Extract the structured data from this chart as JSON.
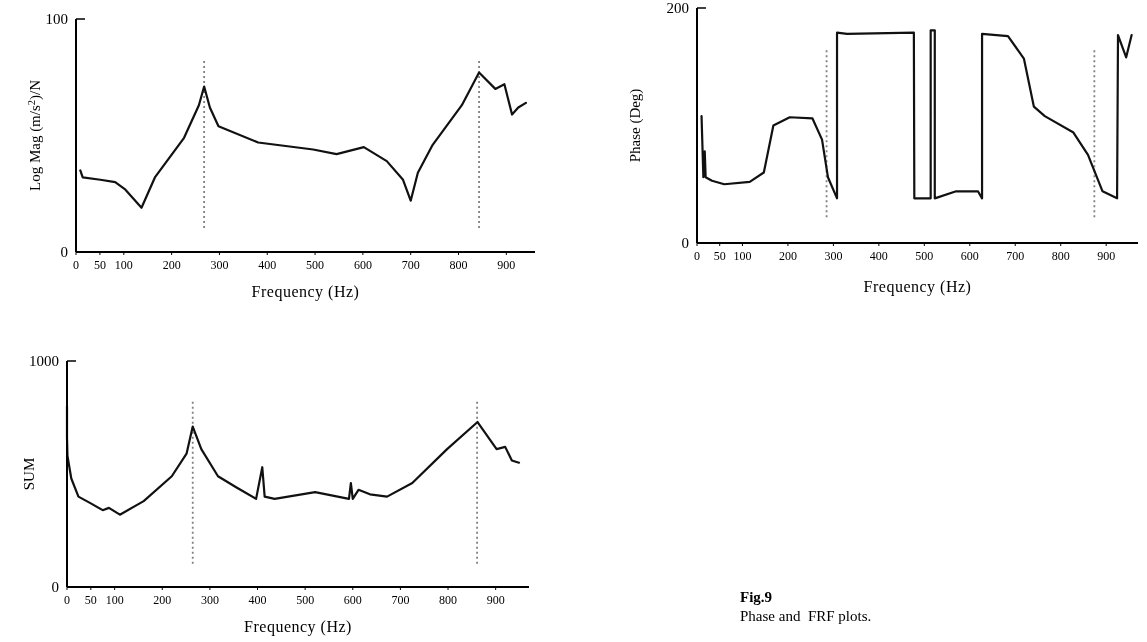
{
  "chart_data": [
    {
      "type": "line",
      "ylabel": "Log Mag (m/s$^{2}$)/N",
      "xlabel": "Frequency (Hz)",
      "xlim": [
        0,
        960
      ],
      "ylim": [
        0,
        100
      ],
      "xticks": [
        0,
        50,
        100,
        200,
        300,
        400,
        500,
        600,
        700,
        800,
        900
      ],
      "yticks": [
        0,
        100
      ],
      "grid": false,
      "marker": "none",
      "line_style": "solid",
      "series": [
        {
          "color": "#111111",
          "x": [
            9,
            14,
            51,
            82,
            102,
            137,
            165,
            226,
            257,
            268,
            280,
            298,
            381,
            496,
            545,
            602,
            650,
            684,
            700,
            715,
            746,
            807,
            843,
            877,
            896,
            912,
            925,
            941
          ],
          "values": [
            35,
            32,
            31,
            30,
            27,
            19,
            32,
            49,
            63,
            71,
            62,
            54,
            47,
            44,
            42,
            45,
            39,
            31,
            22,
            34,
            46,
            63,
            77,
            70,
            72,
            59,
            62,
            64
          ]
        }
      ],
      "ref_lines": [
        {
          "axis": "x",
          "value": 268,
          "color": "#808080",
          "line_style": "dotted"
        },
        {
          "axis": "x",
          "value": 843,
          "color": "#808080",
          "line_style": "dotted"
        }
      ]
    },
    {
      "type": "line",
      "ylabel": "Phase (Deg)",
      "xlabel": "Frequency (Hz)",
      "xlim": [
        0,
        970
      ],
      "ylim": [
        0,
        200
      ],
      "xticks": [
        0,
        50,
        100,
        200,
        300,
        400,
        500,
        600,
        700,
        800,
        900
      ],
      "yticks": [
        0,
        200
      ],
      "grid": false,
      "marker": "none",
      "line_style": "solid",
      "series": [
        {
          "color": "#111111",
          "x": [
            10,
            14,
            17,
            19,
            33,
            60,
            116,
            147,
            168,
            204,
            254,
            275,
            288,
            308,
            308,
            330,
            477,
            478,
            514,
            514,
            523,
            523,
            570,
            618,
            627,
            627,
            684,
            719,
            741,
            765,
            828,
            860,
            892,
            924,
            926,
            944,
            956
          ],
          "values": [
            108,
            56,
            78,
            56,
            53,
            50,
            52,
            60,
            100,
            107,
            106,
            88,
            56,
            38,
            179,
            178,
            179,
            38,
            38,
            181,
            181,
            38,
            44,
            44,
            38,
            178,
            176,
            157,
            116,
            108,
            94,
            75,
            44,
            38,
            177,
            158,
            177
          ]
        }
      ],
      "ref_lines": [
        {
          "axis": "x",
          "value": 285,
          "color": "#808080",
          "line_style": "dotted"
        },
        {
          "axis": "x",
          "value": 874,
          "color": "#808080",
          "line_style": "dotted"
        }
      ]
    },
    {
      "type": "line",
      "ylabel": "SUM",
      "xlabel": "Frequency (Hz)",
      "xlim": [
        0,
        970
      ],
      "ylim": [
        0,
        1000
      ],
      "xticks": [
        0,
        50,
        100,
        200,
        300,
        400,
        500,
        600,
        700,
        800,
        900
      ],
      "yticks": [
        0,
        1000
      ],
      "grid": false,
      "marker": "none",
      "line_style": "solid",
      "series": [
        {
          "color": "#111111",
          "x": [
            0,
            0,
            1,
            9,
            24,
            50,
            75,
            88,
            111,
            161,
            220,
            251,
            264,
            282,
            317,
            356,
            397,
            410,
            415,
            436,
            521,
            592,
            596,
            600,
            612,
            636,
            672,
            725,
            798,
            862,
            902,
            920,
            934,
            949
          ],
          "values": [
            800,
            660,
            580,
            480,
            400,
            370,
            340,
            350,
            320,
            380,
            490,
            590,
            710,
            610,
            490,
            440,
            390,
            530,
            400,
            390,
            420,
            390,
            460,
            390,
            430,
            410,
            400,
            460,
            610,
            730,
            610,
            620,
            560,
            550
          ]
        }
      ],
      "ref_lines": [
        {
          "axis": "x",
          "value": 264,
          "color": "#808080",
          "line_style": "dotted"
        },
        {
          "axis": "x",
          "value": 861,
          "color": "#808080",
          "line_style": "dotted"
        }
      ],
      "annotations": [
        "Fig.9",
        "Phase and  FRF plots."
      ]
    }
  ]
}
